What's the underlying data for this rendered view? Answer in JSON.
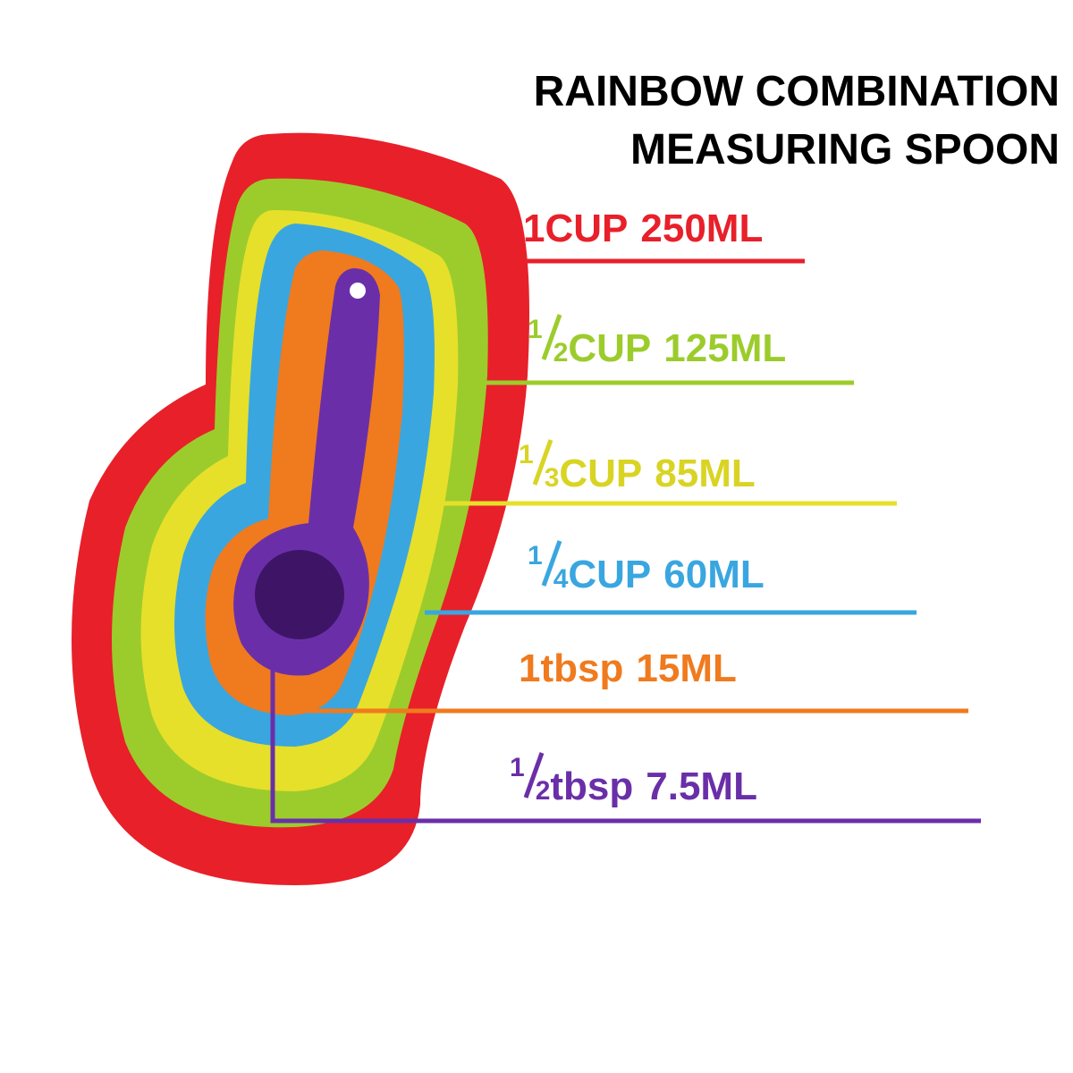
{
  "header": {
    "title_lines": [
      "RAINBOW COMBINATION",
      "MEASURING SPOON"
    ]
  },
  "labels": [
    {
      "whole": "1",
      "unit": "CUP",
      "volume": "250ML",
      "color": "#e8202a"
    },
    {
      "numerator": "1",
      "denominator": "2",
      "unit": "CUP",
      "volume": "125ML",
      "color": "#9ccc2c"
    },
    {
      "numerator": "1",
      "denominator": "3",
      "unit": "CUP",
      "volume": "85ML",
      "color": "#d9d424"
    },
    {
      "numerator": "1",
      "denominator": "4",
      "unit": "CUP",
      "volume": "60ML",
      "color": "#3aa6e0"
    },
    {
      "whole": "1",
      "unit": "tbsp",
      "volume": "15ML",
      "color": "#f07a1e"
    },
    {
      "numerator": "1",
      "denominator": "2",
      "unit": "tbsp",
      "volume": "7.5ML",
      "color": "#6a2fa8"
    }
  ]
}
